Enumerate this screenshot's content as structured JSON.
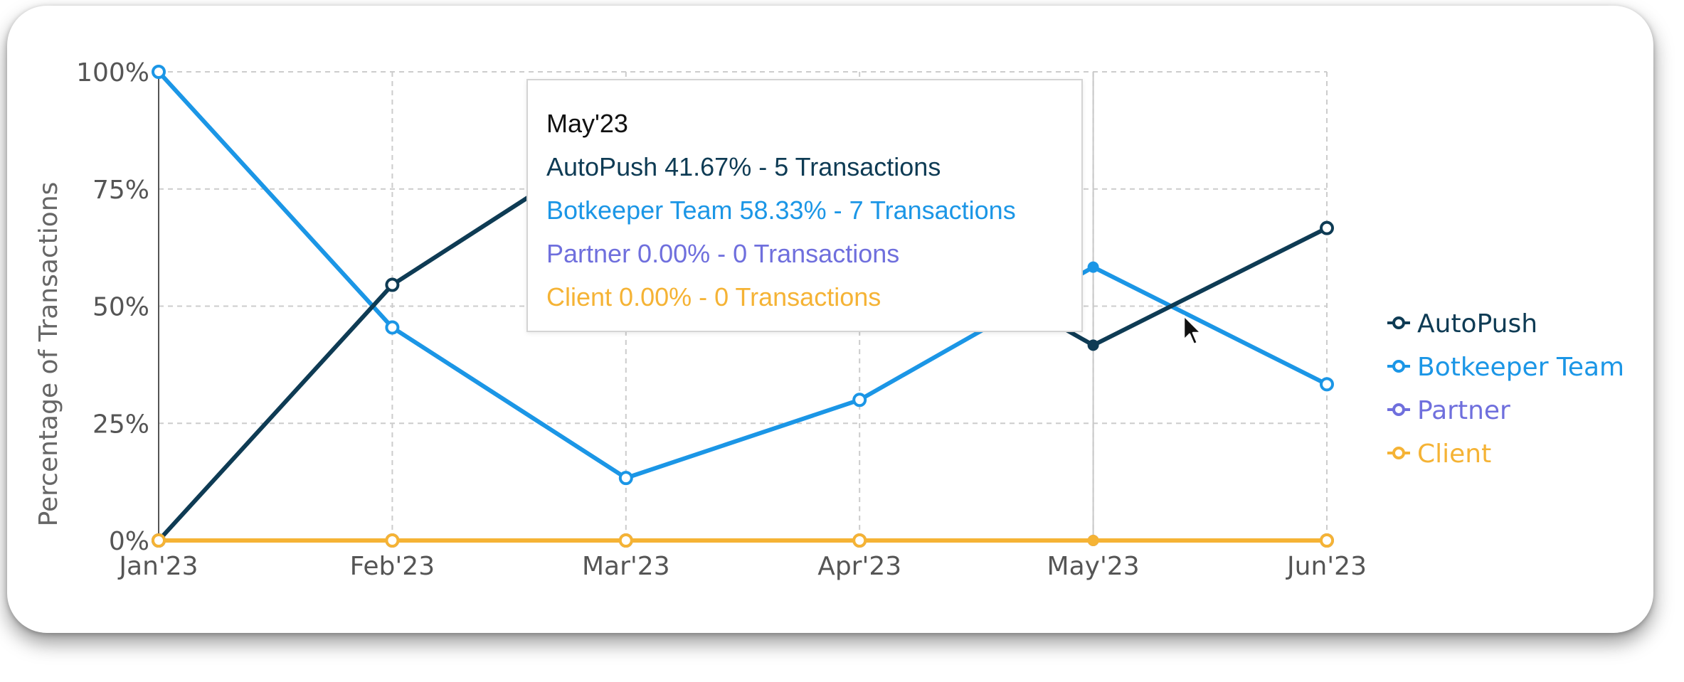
{
  "chart_data": {
    "type": "line",
    "categories": [
      "Jan'23",
      "Feb'23",
      "Mar'23",
      "Apr'23",
      "May'23",
      "Jun'23"
    ],
    "ylabel": "Percentage of Transactions",
    "ylim": [
      0,
      100
    ],
    "yticks": [
      "0%",
      "25%",
      "50%",
      "75%",
      "100%"
    ],
    "grid": true,
    "legend_position": "right",
    "series": [
      {
        "name": "AutoPush",
        "color": "#0e3b54",
        "values": [
          0,
          54.55,
          86.67,
          70.0,
          41.67,
          66.67
        ]
      },
      {
        "name": "Botkeeper Team",
        "color": "#1b96e6",
        "values": [
          100,
          45.45,
          13.33,
          30.0,
          58.33,
          33.33
        ]
      },
      {
        "name": "Partner",
        "color": "#6f6fdd",
        "values": [
          0,
          0,
          0,
          0,
          0,
          0
        ]
      },
      {
        "name": "Client",
        "color": "#f5b335",
        "values": [
          0,
          0,
          0,
          0,
          0,
          0
        ]
      }
    ]
  },
  "tooltip": {
    "title": "May'23",
    "lines": [
      {
        "text": "AutoPush 41.67% - 5 Transactions",
        "color": "#0e3b54"
      },
      {
        "text": "Botkeeper Team 58.33% - 7 Transactions",
        "color": "#1b96e6"
      },
      {
        "text": "Partner 0.00% - 0 Transactions",
        "color": "#6f6fdd"
      },
      {
        "text": "Client 0.00% - 0 Transactions",
        "color": "#f5b335"
      }
    ]
  }
}
